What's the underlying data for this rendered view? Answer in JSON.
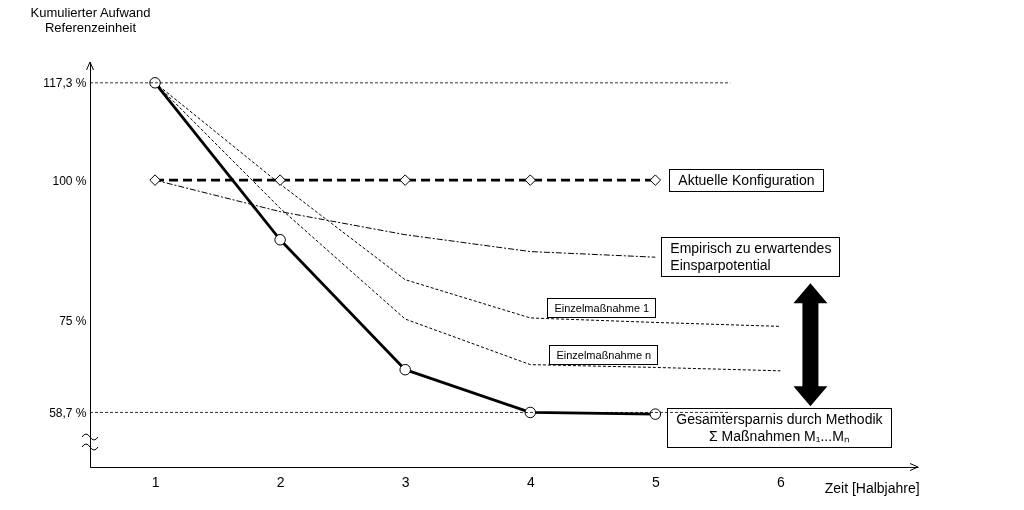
{
  "chart_data": {
    "type": "line",
    "ylabel": "Kumulierter Aufwand\nReferenzeinheit",
    "xlabel": "Zeit [Halbjahre]",
    "categories": [
      "1",
      "2",
      "3",
      "4",
      "5",
      "6"
    ],
    "ylim": [
      49,
      121
    ],
    "yticks": [
      {
        "value": 117.3,
        "label": "117,3 %"
      },
      {
        "value": 100,
        "label": "100 %"
      },
      {
        "value": 75,
        "label": "75 %"
      },
      {
        "value": 58.7,
        "label": "58,7 %"
      }
    ],
    "grid": false,
    "legend": false,
    "ref_lines": [
      {
        "axis": "y",
        "value": 117.3,
        "label": null,
        "line_style": "dotted",
        "color": "#000000"
      },
      {
        "axis": "y",
        "value": 58.7,
        "label": null,
        "line_style": "dotted",
        "color": "#000000"
      }
    ],
    "series": [
      {
        "name": "Aktuelle Konfiguration",
        "color": "#000000",
        "line_style": "dashed",
        "marker": "diamond",
        "values": [
          100,
          100,
          100,
          100,
          100,
          null
        ]
      },
      {
        "name": "Empirisch zu erwartendes\nEinsparpotential",
        "color": "#000000",
        "line_style": "dashdot",
        "marker": "none",
        "values": [
          100,
          94.4,
          90.3,
          87.3,
          86.3,
          null
        ]
      },
      {
        "name": "Einzelmaßnahme 1",
        "color": "#000000",
        "line_style": "dotted",
        "marker": "none",
        "values": [
          117.3,
          99.3,
          82.3,
          75.5,
          74.7,
          74.0
        ]
      },
      {
        "name": "Einzelmaßnahme n",
        "color": "#000000",
        "line_style": "dotted",
        "marker": "none",
        "values": [
          117.3,
          95.0,
          75.3,
          67.2,
          66.7,
          66.1
        ]
      },
      {
        "name": "Gesamtersparnis durch Methodik\nΣ Maßnahmen M₁...Mₙ",
        "color": "#000000",
        "line_style": "solid",
        "marker": "circle",
        "values": [
          117.3,
          89.4,
          66.3,
          58.7,
          58.4,
          null
        ]
      }
    ]
  }
}
